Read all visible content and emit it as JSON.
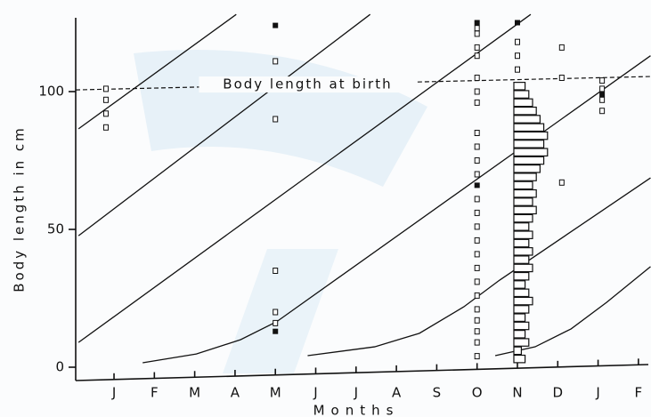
{
  "chart_data": {
    "type": "scatter",
    "x_label": "Months",
    "y_label": "Body length in cm",
    "categories": [
      "J",
      "F",
      "M",
      "A",
      "M",
      "J",
      "J",
      "A",
      "S",
      "O",
      "N",
      "D",
      "J",
      "F"
    ],
    "xlim": [
      -0.95,
      13.4
    ],
    "ylim": [
      -5,
      130
    ],
    "yticks": [
      0,
      50,
      100
    ],
    "lines": [
      {
        "x": [
          -0.88,
          3.03
        ],
        "y": [
          86.5,
          128
        ]
      },
      {
        "x": [
          -0.88,
          6.35
        ],
        "y": [
          47.7,
          128
        ]
      },
      {
        "x": [
          -0.88,
          10.33
        ],
        "y": [
          9.0,
          128
        ]
      },
      {
        "x": [
          0.71,
          2.04,
          3.14,
          4.03,
          13.3
        ],
        "y": [
          1.6,
          4.8,
          10,
          16.5,
          113
        ]
      },
      {
        "x": [
          4.8,
          6.46,
          7.57,
          8.67,
          9.56,
          13.3
        ],
        "y": [
          4.2,
          7.4,
          12.3,
          21.9,
          31.6,
          68.7
        ]
      },
      {
        "x": [
          9.45,
          10.44,
          11.33,
          12.21,
          13.3
        ],
        "y": [
          4.2,
          7.4,
          13.9,
          23.5,
          36.5
        ]
      }
    ],
    "birth_line": {
      "label": "Body length at birth",
      "x": [
        -0.95,
        13.4
      ],
      "y": [
        100.6,
        105.5
      ]
    },
    "points": {
      "x": [
        -0.2,
        -0.2,
        -0.2,
        -0.2,
        4.0,
        4.0,
        4.0,
        4.0,
        4.0,
        9.0,
        9.0,
        9.0,
        9.0,
        9.0,
        9.0,
        9.0,
        9.0,
        9.0,
        9.0,
        9.0,
        9.0,
        9.0,
        9.0,
        9.0,
        9.0,
        9.0,
        9.0,
        9.0,
        9.0,
        9.0,
        9.0,
        9.0,
        9.0,
        10.0,
        10.0,
        10.0,
        11.1,
        11.1,
        11.1,
        12.1,
        12.1,
        12.1,
        12.1
      ],
      "y": [
        101,
        97,
        92,
        87,
        111,
        90,
        35,
        20,
        16,
        123,
        121,
        116,
        113,
        105,
        100,
        96,
        85,
        80,
        75,
        70,
        61,
        56,
        51,
        46,
        41,
        36,
        31,
        26,
        21,
        17,
        13,
        9,
        4,
        118,
        113,
        108,
        116,
        105,
        67,
        104,
        101,
        97,
        93
      ]
    },
    "filled": {
      "x": [
        4.0,
        4.0,
        9.0,
        9.0,
        10.0,
        10.0,
        12.1
      ],
      "y": [
        124,
        13,
        125,
        66,
        125,
        85,
        99
      ]
    },
    "bars": {
      "x": 10.0,
      "y": [
        3,
        6,
        9,
        12,
        15,
        18,
        21,
        24,
        27,
        30,
        33,
        36,
        39,
        42,
        45,
        48,
        51,
        54,
        57,
        60,
        63,
        66,
        69,
        72,
        75,
        78,
        81,
        84,
        87,
        90,
        93,
        96,
        99,
        102
      ],
      "counts": [
        3,
        2,
        4,
        3,
        4,
        3,
        4,
        5,
        4,
        3,
        4,
        5,
        4,
        5,
        4,
        5,
        4,
        5,
        6,
        5,
        6,
        5,
        6,
        7,
        8,
        9,
        8,
        9,
        8,
        7,
        6,
        5,
        4,
        3
      ]
    }
  }
}
